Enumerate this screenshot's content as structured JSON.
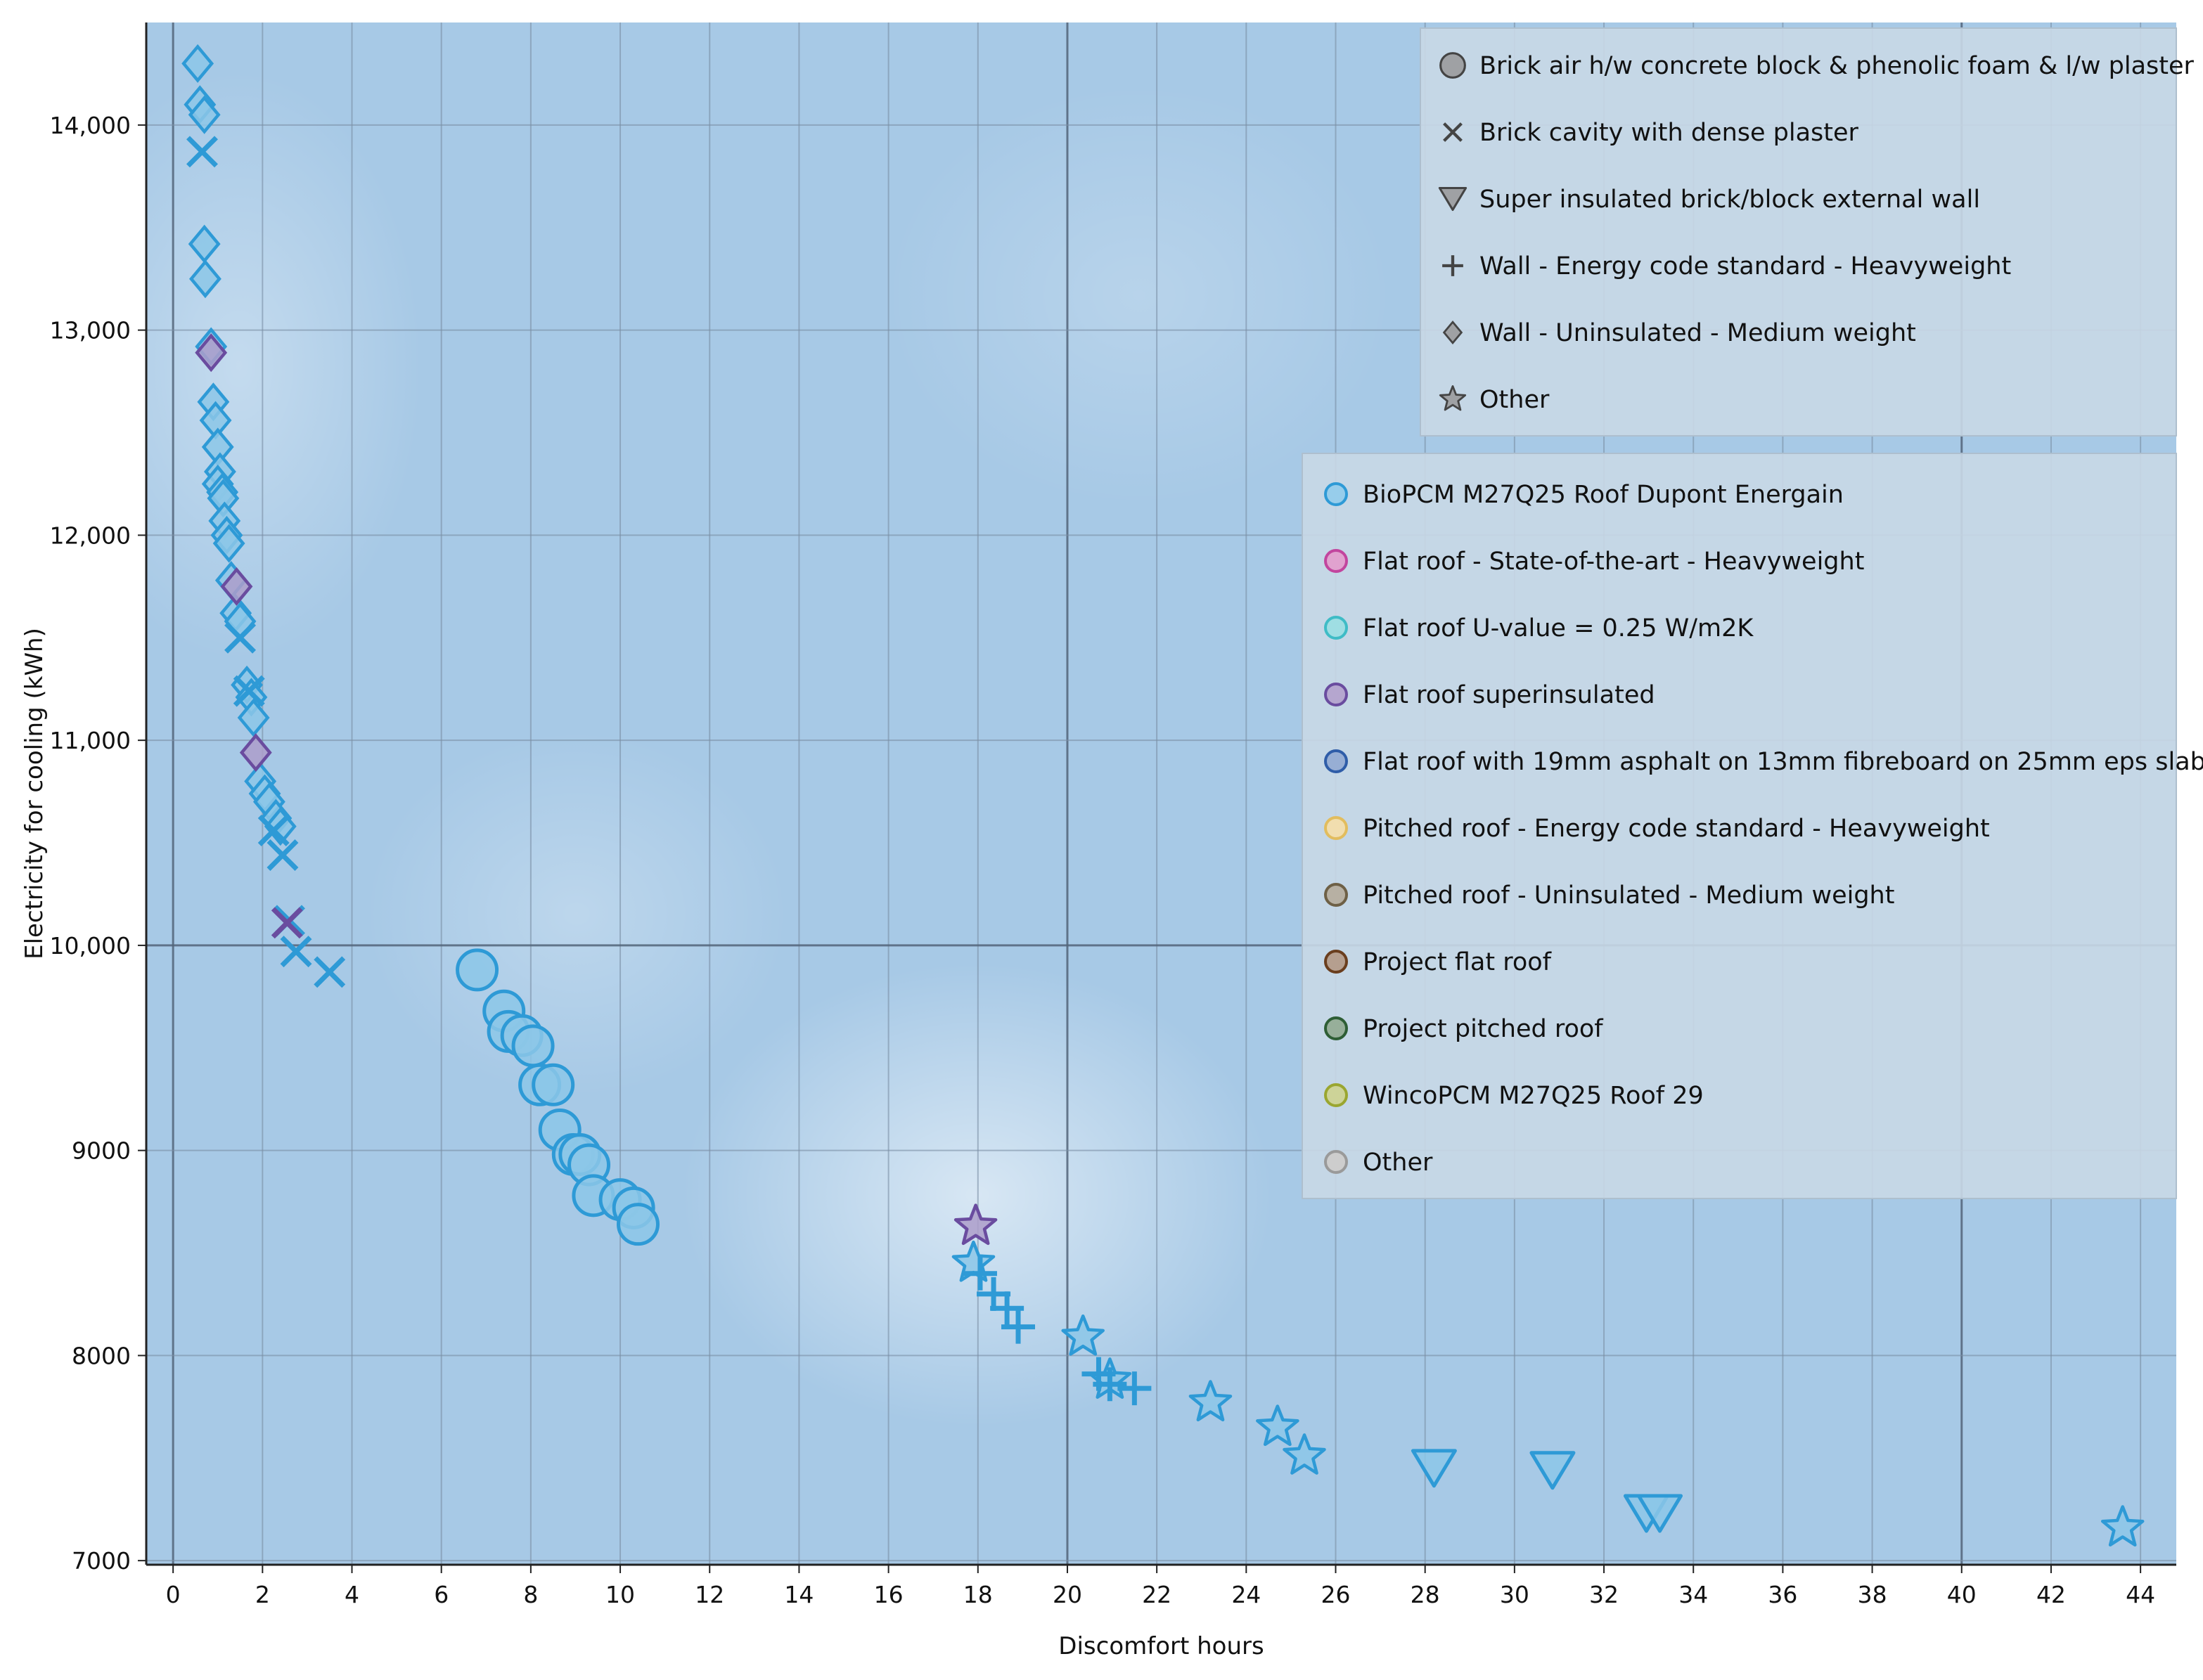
{
  "chart_data": {
    "type": "scatter",
    "title": "",
    "xlabel": "Discomfort hours",
    "ylabel": "Electricity for cooling (kWh)",
    "xlim": [
      -0.6,
      44.8
    ],
    "ylim": [
      6980,
      14500
    ],
    "x_ticks": [
      0,
      2,
      4,
      6,
      8,
      10,
      12,
      14,
      16,
      18,
      20,
      22,
      24,
      26,
      28,
      30,
      32,
      34,
      36,
      38,
      40,
      42,
      44
    ],
    "x_tick_labels": [
      "0",
      "2",
      "4",
      "6",
      "8",
      "10",
      "12",
      "14",
      "16",
      "18",
      "20",
      "22",
      "24",
      "26",
      "28",
      "30",
      "32",
      "34",
      "36",
      "38",
      "40",
      "42",
      "44"
    ],
    "y_ticks": [
      7000,
      8000,
      9000,
      10000,
      11000,
      12000,
      13000,
      14000
    ],
    "y_tick_labels": [
      "7000",
      "8000",
      "9000",
      "10,000",
      "11,000",
      "12,000",
      "13,000",
      "14,000"
    ],
    "grid": true,
    "background_color": "#a7c9e6",
    "shape_legend": {
      "placement": "top-right",
      "items": [
        {
          "label": "Brick air h/w concrete block & phenolic foam & l/w plaster",
          "shape": "circle"
        },
        {
          "label": "Brick cavity with dense plaster",
          "shape": "x"
        },
        {
          "label": "Super insulated brick/block external wall",
          "shape": "triangle-down"
        },
        {
          "label": "Wall - Energy code standard - Heavyweight",
          "shape": "plus"
        },
        {
          "label": "Wall - Uninsulated - Medium weight",
          "shape": "diamond"
        },
        {
          "label": "Other",
          "shape": "star"
        }
      ]
    },
    "color_legend": {
      "placement": "right",
      "items": [
        {
          "label": "BioPCM M27Q25 Roof Dupont Energain",
          "color": "#2e9ad6"
        },
        {
          "label": "Flat roof - State-of-the-art - Heavyweight",
          "color": "#c2459e"
        },
        {
          "label": "Flat roof U-value = 0.25 W/m2K",
          "color": "#3fbcc6"
        },
        {
          "label": "Flat roof superinsulated",
          "color": "#6a4c9f"
        },
        {
          "label": "Flat roof with 19mm asphalt on 13mm fibreboard on 25mm eps slab",
          "color": "#2f5da8"
        },
        {
          "label": "Pitched roof - Energy code standard - Heavyweight",
          "color": "#e2bd5e"
        },
        {
          "label": "Pitched roof - Uninsulated - Medium weight",
          "color": "#6e6046"
        },
        {
          "label": "Project flat roof",
          "color": "#6a3e1e"
        },
        {
          "label": "Project pitched roof",
          "color": "#2e5e35"
        },
        {
          "label": "WincoPCM M27Q25 Roof 29",
          "color": "#9aa630"
        },
        {
          "label": "Other",
          "color": "#9a9a9a"
        }
      ]
    },
    "series": [
      {
        "shape": "diamond",
        "color": "#2e9ad6",
        "points": [
          [
            0.55,
            14300
          ],
          [
            0.6,
            14100
          ],
          [
            0.7,
            14050
          ],
          [
            0.7,
            13420
          ],
          [
            0.72,
            13250
          ],
          [
            0.85,
            12920
          ],
          [
            0.9,
            12650
          ],
          [
            0.95,
            12560
          ],
          [
            1.0,
            12430
          ],
          [
            1.05,
            12310
          ],
          [
            1.0,
            12250
          ],
          [
            1.1,
            12210
          ],
          [
            1.12,
            12180
          ],
          [
            1.15,
            12070
          ],
          [
            1.2,
            12000
          ],
          [
            1.25,
            11960
          ],
          [
            1.3,
            11780
          ],
          [
            1.4,
            11620
          ],
          [
            1.5,
            11580
          ],
          [
            1.65,
            11270
          ],
          [
            1.75,
            11210
          ],
          [
            1.8,
            11110
          ],
          [
            1.95,
            10800
          ],
          [
            2.05,
            10740
          ],
          [
            2.15,
            10700
          ],
          [
            2.3,
            10620
          ],
          [
            2.4,
            10580
          ]
        ]
      },
      {
        "shape": "diamond",
        "color": "#6a4c9f",
        "points": [
          [
            0.85,
            12890
          ],
          [
            1.42,
            11750
          ],
          [
            1.85,
            10940
          ]
        ]
      },
      {
        "shape": "x",
        "color": "#2e9ad6",
        "points": [
          [
            0.65,
            13870
          ],
          [
            1.5,
            11500
          ],
          [
            1.7,
            11240
          ],
          [
            2.25,
            10560
          ],
          [
            2.45,
            10440
          ],
          [
            2.6,
            10120
          ],
          [
            2.75,
            9970
          ],
          [
            3.5,
            9870
          ]
        ]
      },
      {
        "shape": "x",
        "color": "#6a4c9f",
        "points": [
          [
            2.55,
            10110
          ]
        ]
      },
      {
        "shape": "circle",
        "color": "#2e9ad6",
        "points": [
          [
            6.8,
            9880
          ],
          [
            7.4,
            9680
          ],
          [
            7.5,
            9580
          ],
          [
            7.8,
            9560
          ],
          [
            8.05,
            9510
          ],
          [
            8.2,
            9320
          ],
          [
            8.5,
            9320
          ],
          [
            8.65,
            9100
          ],
          [
            8.95,
            8980
          ],
          [
            9.1,
            8980
          ],
          [
            9.3,
            8930
          ],
          [
            9.4,
            8780
          ],
          [
            10.0,
            8760
          ],
          [
            10.3,
            8720
          ],
          [
            10.4,
            8640
          ]
        ]
      },
      {
        "shape": "star",
        "color": "#6a4c9f",
        "points": [
          [
            17.95,
            8630
          ]
        ]
      },
      {
        "shape": "star",
        "color": "#2e9ad6",
        "points": [
          [
            17.9,
            8450
          ],
          [
            20.35,
            8090
          ],
          [
            20.95,
            7880
          ],
          [
            23.2,
            7770
          ],
          [
            24.7,
            7650
          ],
          [
            25.3,
            7510
          ],
          [
            43.6,
            7160
          ]
        ]
      },
      {
        "shape": "plus",
        "color": "#2e9ad6",
        "points": [
          [
            18.05,
            8400
          ],
          [
            18.35,
            8300
          ],
          [
            18.65,
            8230
          ],
          [
            18.9,
            8140
          ],
          [
            20.7,
            7910
          ],
          [
            20.95,
            7860
          ],
          [
            21.5,
            7840
          ]
        ]
      },
      {
        "shape": "triangle-down",
        "color": "#2e9ad6",
        "points": [
          [
            28.2,
            7450
          ],
          [
            30.85,
            7440
          ],
          [
            32.95,
            7230
          ],
          [
            33.25,
            7230
          ]
        ]
      }
    ]
  }
}
